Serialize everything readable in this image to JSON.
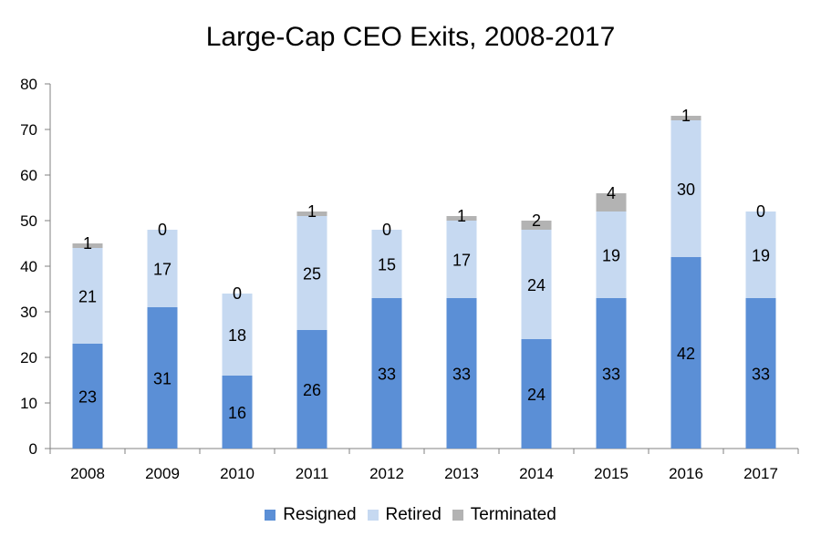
{
  "chart_data": {
    "type": "bar",
    "stacked": true,
    "title": "Large-Cap CEO Exits, 2008-2017",
    "xlabel": "",
    "ylabel": "",
    "ylim": [
      0,
      80
    ],
    "yticks": [
      0,
      10,
      20,
      30,
      40,
      50,
      60,
      70,
      80
    ],
    "grid": false,
    "legend_position": "bottom",
    "categories": [
      "2008",
      "2009",
      "2010",
      "2011",
      "2012",
      "2013",
      "2014",
      "2015",
      "2016",
      "2017"
    ],
    "series": [
      {
        "name": "Resigned",
        "color": "#5b8fd6",
        "values": [
          23,
          31,
          16,
          26,
          33,
          33,
          24,
          33,
          42,
          33
        ]
      },
      {
        "name": "Retired",
        "color": "#c6d9f1",
        "values": [
          21,
          17,
          18,
          25,
          15,
          17,
          24,
          19,
          30,
          19
        ]
      },
      {
        "name": "Terminated",
        "color": "#b3b3b3",
        "values": [
          1,
          0,
          0,
          1,
          0,
          1,
          2,
          4,
          1,
          0
        ]
      }
    ]
  }
}
